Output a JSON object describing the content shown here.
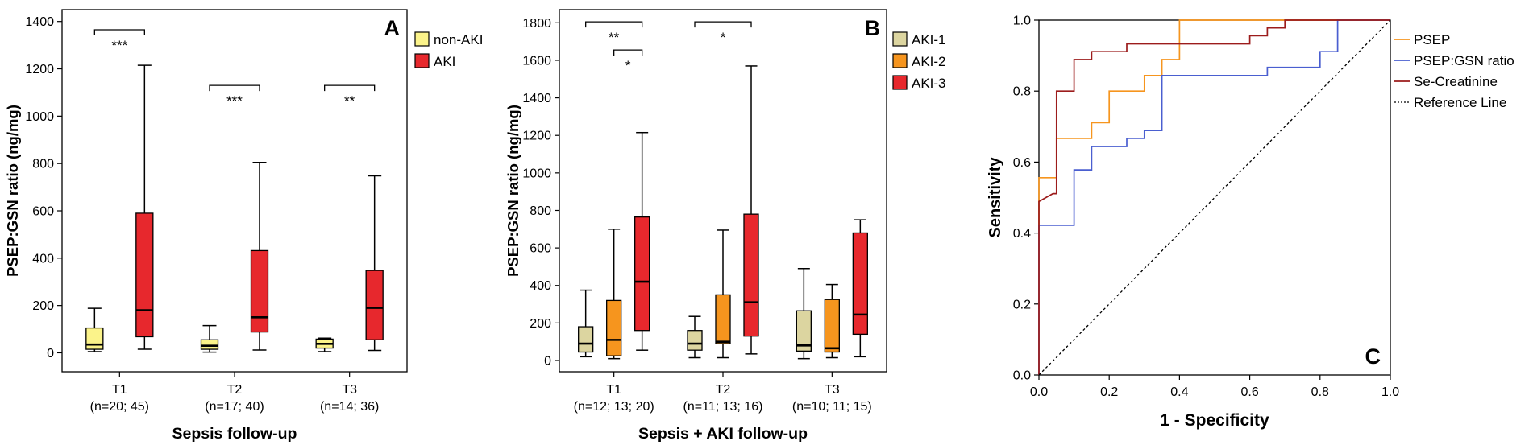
{
  "chart_data": [
    {
      "type": "boxplot",
      "panel_letter": "A",
      "ylabel": "PSEP:GSN ratio (ng/mg)",
      "xlabel": "Sepsis follow-up",
      "ylim": [
        -80,
        1450
      ],
      "yticks": [
        "0",
        "200",
        "400",
        "600",
        "800",
        "1000",
        "1200",
        "1400"
      ],
      "ytick_values": [
        0,
        200,
        400,
        600,
        800,
        1000,
        1200,
        1400
      ],
      "groups": [
        {
          "label": "T1",
          "n": "(n=20; 45)"
        },
        {
          "label": "T2",
          "n": "(n=17; 40)"
        },
        {
          "label": "T3",
          "n": "(n=14; 36)"
        }
      ],
      "series": [
        {
          "name": "non-AKI",
          "color": "#fbf38a",
          "boxes": [
            {
              "min": 5,
              "q1": 15,
              "median": 35,
              "q3": 105,
              "max": 188
            },
            {
              "min": 3,
              "q1": 15,
              "median": 30,
              "q3": 55,
              "max": 115
            },
            {
              "min": 5,
              "q1": 20,
              "median": 38,
              "q3": 58,
              "max": 62
            }
          ]
        },
        {
          "name": "AKI",
          "color": "#e7282d",
          "boxes": [
            {
              "min": 15,
              "q1": 68,
              "median": 180,
              "q3": 590,
              "max": 1215
            },
            {
              "min": 12,
              "q1": 88,
              "median": 150,
              "q3": 432,
              "max": 805
            },
            {
              "min": 10,
              "q1": 55,
              "median": 190,
              "q3": 348,
              "max": 748
            }
          ]
        }
      ],
      "significance": [
        {
          "group": 0,
          "from": 0,
          "to": 1,
          "y": 1365,
          "label": "***"
        },
        {
          "group": 1,
          "from": 0,
          "to": 1,
          "y": 1130,
          "label": "***"
        },
        {
          "group": 2,
          "from": 0,
          "to": 1,
          "y": 1130,
          "label": "**"
        }
      ]
    },
    {
      "type": "boxplot",
      "panel_letter": "B",
      "ylabel": "PSEP:GSN ratio (ng/mg)",
      "xlabel": "Sepsis + AKI follow-up",
      "ylim": [
        -60,
        1870
      ],
      "yticks": [
        "0",
        "200",
        "400",
        "600",
        "800",
        "1000",
        "1200",
        "1400",
        "1600",
        "1800"
      ],
      "ytick_values": [
        0,
        200,
        400,
        600,
        800,
        1000,
        1200,
        1400,
        1600,
        1800
      ],
      "groups": [
        {
          "label": "T1",
          "n": "(n=12; 13; 20)"
        },
        {
          "label": "T2",
          "n": "(n=11; 13; 16)"
        },
        {
          "label": "T3",
          "n": "(n=10; 11; 15)"
        }
      ],
      "series": [
        {
          "name": "AKI-1",
          "color": "#dcd5a0",
          "boxes": [
            {
              "min": 20,
              "q1": 45,
              "median": 90,
              "q3": 180,
              "max": 375
            },
            {
              "min": 15,
              "q1": 55,
              "median": 90,
              "q3": 160,
              "max": 235
            },
            {
              "min": 10,
              "q1": 50,
              "median": 80,
              "q3": 265,
              "max": 490
            }
          ]
        },
        {
          "name": "AKI-2",
          "color": "#f6951e",
          "boxes": [
            {
              "min": 10,
              "q1": 25,
              "median": 110,
              "q3": 320,
              "max": 700
            },
            {
              "min": 15,
              "q1": 90,
              "median": 100,
              "q3": 350,
              "max": 695
            },
            {
              "min": 15,
              "q1": 45,
              "median": 65,
              "q3": 325,
              "max": 405
            }
          ]
        },
        {
          "name": "AKI-3",
          "color": "#e7282d",
          "boxes": [
            {
              "min": 55,
              "q1": 160,
              "median": 420,
              "q3": 765,
              "max": 1215
            },
            {
              "min": 35,
              "q1": 130,
              "median": 310,
              "q3": 780,
              "max": 1570
            },
            {
              "min": 20,
              "q1": 140,
              "median": 245,
              "q3": 680,
              "max": 750
            }
          ]
        }
      ],
      "significance": [
        {
          "group": 0,
          "from": 0,
          "to": 2,
          "y": 1805,
          "label": "**"
        },
        {
          "group": 0,
          "from": 1,
          "to": 2,
          "y": 1655,
          "label": "*"
        },
        {
          "group": 1,
          "from": 0,
          "to": 2,
          "y": 1805,
          "label": "*"
        }
      ]
    },
    {
      "type": "line",
      "panel_letter": "C",
      "xlabel": "1 - Specificity",
      "ylabel": "Sensitivity",
      "xlim": [
        0,
        1
      ],
      "ylim": [
        0,
        1
      ],
      "xticks": [
        "0.0",
        "0.2",
        "0.4",
        "0.6",
        "0.8",
        "1.0"
      ],
      "xtick_values": [
        0,
        0.2,
        0.4,
        0.6,
        0.8,
        1.0
      ],
      "yticks": [
        "0.0",
        "0.2",
        "0.4",
        "0.6",
        "0.8",
        "1.0"
      ],
      "ytick_values": [
        0,
        0.2,
        0.4,
        0.6,
        0.8,
        1.0
      ],
      "series": [
        {
          "name": "PSEP",
          "color": "#f6951e",
          "dash": "",
          "x": [
            0,
            0,
            0.05,
            0.05,
            0.125,
            0.125,
            0.15,
            0.15,
            0.2,
            0.2,
            0.3,
            0.3,
            0.35,
            0.35,
            0.4,
            0.4,
            1.0
          ],
          "y": [
            0,
            0.556,
            0.556,
            0.667,
            0.667,
            0.667,
            0.667,
            0.711,
            0.711,
            0.8,
            0.8,
            0.844,
            0.844,
            0.889,
            0.889,
            1.0,
            1.0
          ]
        },
        {
          "name": "PSEP:GSN ratio",
          "color": "#4a5fd0",
          "dash": "",
          "x": [
            0,
            0,
            0.1,
            0.1,
            0.15,
            0.15,
            0.25,
            0.25,
            0.3,
            0.3,
            0.35,
            0.35,
            0.65,
            0.65,
            0.8,
            0.8,
            0.85,
            0.85,
            1.0
          ],
          "y": [
            0,
            0.422,
            0.422,
            0.578,
            0.578,
            0.644,
            0.644,
            0.667,
            0.667,
            0.689,
            0.689,
            0.844,
            0.844,
            0.867,
            0.867,
            0.911,
            0.911,
            1.0,
            1.0
          ]
        },
        {
          "name": "Se-Creatinine",
          "color": "#9c1c1c",
          "dash": "",
          "x": [
            0,
            0,
            0.04,
            0.04,
            0.05,
            0.05,
            0.1,
            0.1,
            0.15,
            0.15,
            0.25,
            0.25,
            0.4,
            0.4,
            0.6,
            0.6,
            0.65,
            0.65,
            0.7,
            0.7,
            1.0
          ],
          "y": [
            0,
            0.489,
            0.511,
            0.511,
            0.511,
            0.8,
            0.8,
            0.889,
            0.889,
            0.911,
            0.911,
            0.933,
            0.933,
            0.933,
            0.933,
            0.956,
            0.956,
            0.978,
            0.978,
            1.0,
            1.0
          ]
        },
        {
          "name": "Reference Line",
          "color": "#000000",
          "dash": "3,3",
          "x": [
            0,
            1
          ],
          "y": [
            0,
            1
          ]
        }
      ]
    }
  ]
}
